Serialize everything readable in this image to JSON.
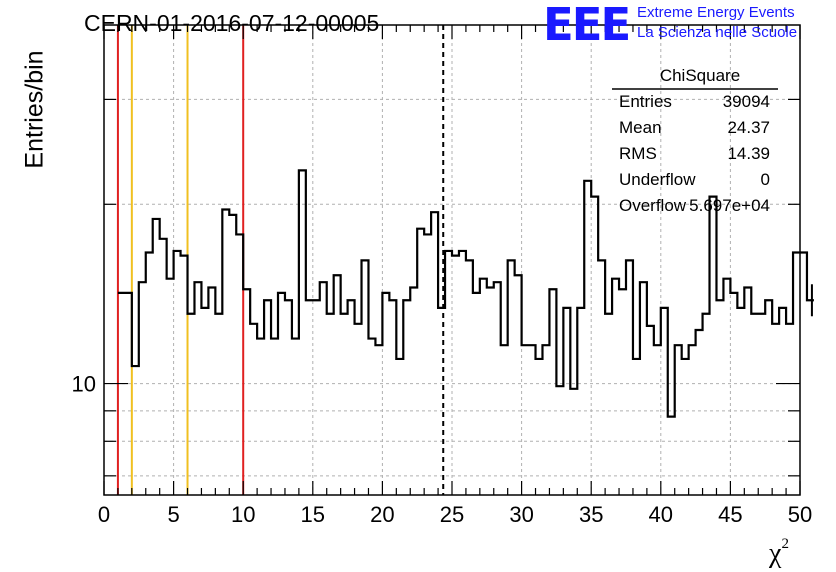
{
  "title": "CERN-01-2016-07-12-00005",
  "logo": {
    "mark": "EEE",
    "line1": "Extreme Energy Events",
    "line2": "La Scienza nelle Scuole"
  },
  "stats": {
    "title": "ChiSquare",
    "rows": [
      {
        "key": "Entries",
        "value": "39094"
      },
      {
        "key": "Mean",
        "value": "24.37"
      },
      {
        "key": "RMS",
        "value": "14.39"
      },
      {
        "key": "Underflow",
        "value": "0"
      },
      {
        "key": "Overflow",
        "value": "5.697e+04"
      }
    ]
  },
  "chart_data": {
    "type": "histogram",
    "xlabel": "χ",
    "xlabel_sup": "2",
    "ylabel": "Entries/bin",
    "xlim": [
      0,
      50
    ],
    "ylim": [
      6.5,
      40
    ],
    "yscale": "log",
    "grid": true,
    "x_ticks": [
      0,
      5,
      10,
      15,
      20,
      25,
      30,
      35,
      40,
      45,
      50
    ],
    "y_tick_labels": [
      {
        "value": 10,
        "label": "10"
      }
    ],
    "bin_width": 0.5,
    "bin_start": 1,
    "values": [
      14.2,
      14.2,
      10.7,
      14.8,
      16.6,
      18.9,
      17.5,
      15.0,
      16.7,
      16.4,
      13.1,
      14.8,
      13.4,
      14.5,
      13.1,
      19.6,
      19.2,
      17.8,
      14.4,
      12.6,
      11.9,
      13.8,
      11.9,
      14.2,
      13.8,
      11.9,
      22.8,
      13.8,
      13.8,
      14.8,
      13.1,
      15.2,
      13.1,
      13.8,
      12.6,
      16.1,
      11.9,
      11.6,
      14.2,
      13.8,
      11.0,
      13.8,
      14.5,
      18.2,
      17.8,
      19.4,
      13.4,
      16.7,
      16.4,
      16.7,
      16.1,
      14.2,
      15.0,
      14.5,
      14.8,
      11.6,
      16.1,
      15.2,
      11.6,
      11.6,
      11.0,
      11.6,
      14.4,
      9.9,
      13.4,
      9.8,
      13.4,
      21.9,
      20.6,
      16.1,
      13.1,
      15.0,
      14.4,
      16.1,
      11.0,
      14.8,
      12.5,
      11.6,
      13.4,
      8.8,
      11.6,
      11.0,
      11.6,
      12.3,
      13.1,
      20.6,
      13.8,
      15.0,
      14.2,
      13.4,
      14.5,
      13.1,
      13.1,
      13.8,
      12.6,
      13.4,
      12.6,
      16.6,
      16.6,
      13.8
    ],
    "vertical_lines": [
      {
        "x": 1,
        "color": "#e02020"
      },
      {
        "x": 2,
        "color": "#f0c020"
      },
      {
        "x": 6,
        "color": "#f0c020"
      },
      {
        "x": 10,
        "color": "#e02020"
      },
      {
        "x": 24.37,
        "color": "#000000",
        "dashed": true
      }
    ]
  }
}
